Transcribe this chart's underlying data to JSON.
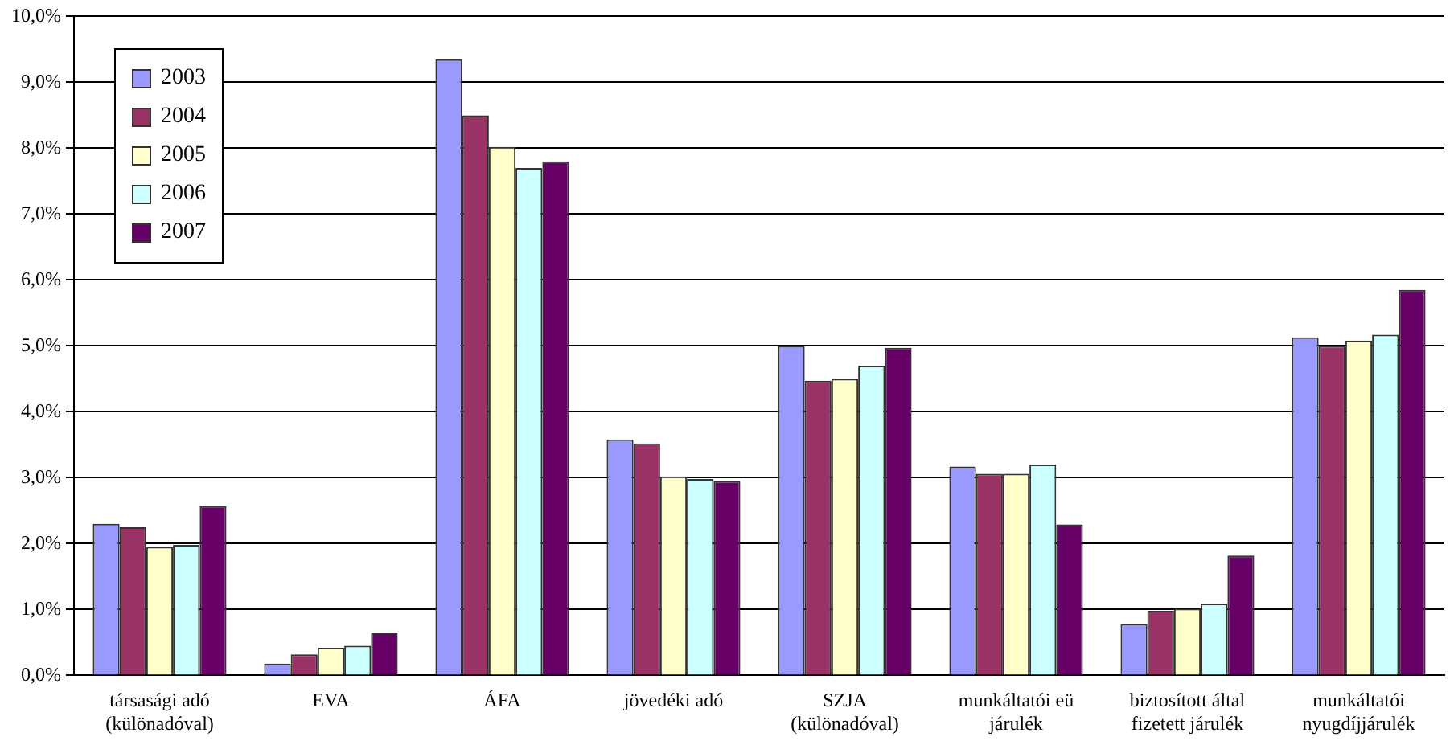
{
  "chart_data": {
    "type": "bar",
    "categories": [
      "társasági adó\n(különadóval)",
      "EVA",
      "ÁFA",
      "jövedéki adó",
      "SZJA\n(különadóval)",
      "munkáltatói eü\njárulék",
      "biztosított által\nfizetett járulék",
      "munkáltatói\nnyugdíjjárulék"
    ],
    "series": [
      {
        "name": "2003",
        "color": "#9999ff",
        "values": [
          2.3,
          0.18,
          9.35,
          3.58,
          5.0,
          3.17,
          0.78,
          5.13
        ]
      },
      {
        "name": "2004",
        "color": "#993366",
        "values": [
          2.25,
          0.32,
          8.5,
          3.52,
          4.47,
          3.06,
          0.98,
          5.0
        ]
      },
      {
        "name": "2005",
        "color": "#ffffcc",
        "values": [
          1.95,
          0.42,
          8.02,
          3.02,
          4.5,
          3.06,
          1.01,
          5.08
        ]
      },
      {
        "name": "2006",
        "color": "#ccffff",
        "values": [
          1.98,
          0.45,
          7.7,
          2.98,
          4.7,
          3.2,
          1.09,
          5.17
        ]
      },
      {
        "name": "2007",
        "color": "#660066",
        "values": [
          2.57,
          0.65,
          7.8,
          2.95,
          4.97,
          2.29,
          1.82,
          5.85
        ]
      }
    ],
    "ylim": [
      0,
      10
    ],
    "yticks": [
      {
        "value": 0,
        "label": "0,0%"
      },
      {
        "value": 1,
        "label": "1,0%"
      },
      {
        "value": 2,
        "label": "2,0%"
      },
      {
        "value": 3,
        "label": "3,0%"
      },
      {
        "value": 4,
        "label": "4,0%"
      },
      {
        "value": 5,
        "label": "5,0%"
      },
      {
        "value": 6,
        "label": "6,0%"
      },
      {
        "value": 7,
        "label": "7,0%"
      },
      {
        "value": 8,
        "label": "8,0%"
      },
      {
        "value": 9,
        "label": "9,0%"
      },
      {
        "value": 10,
        "label": "10,0%"
      }
    ],
    "grid": "y",
    "legend": "top left"
  }
}
